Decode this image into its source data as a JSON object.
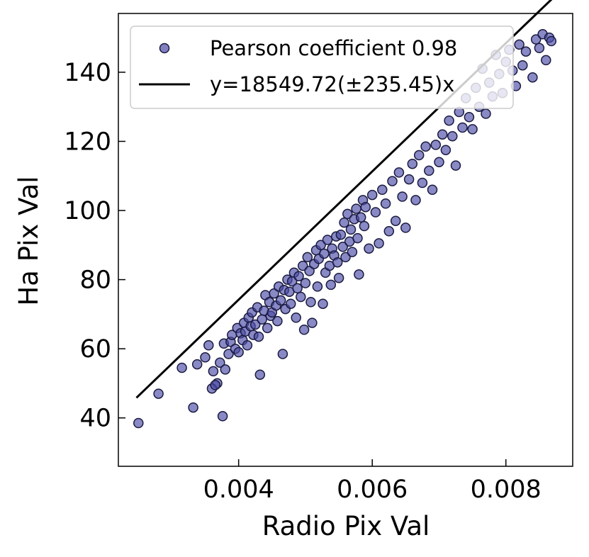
{
  "chart_data": {
    "type": "scatter",
    "xlabel": "Radio Pix Val",
    "ylabel": "Ha Pix Val",
    "xlim": [
      0.0022,
      0.009
    ],
    "ylim": [
      26,
      157
    ],
    "x_ticks": [
      0.004,
      0.006,
      0.008
    ],
    "x_tick_labels": [
      "0.004",
      "0.006",
      "0.008"
    ],
    "y_ticks": [
      40,
      60,
      80,
      100,
      120,
      140
    ],
    "y_tick_labels": [
      "40",
      "60",
      "80",
      "100",
      "120",
      "140"
    ],
    "grid": false,
    "legend_position": "top-left",
    "marker_color": "#4a4aa6",
    "marker_edge_color": "#1a1a40",
    "line_color": "#000000",
    "series": [
      {
        "name": "Pearson coefficient 0.98",
        "kind": "scatter",
        "points": [
          [
            0.0025,
            38.5
          ],
          [
            0.0028,
            47.0
          ],
          [
            0.00315,
            54.5
          ],
          [
            0.00332,
            43.0
          ],
          [
            0.00338,
            55.5
          ],
          [
            0.0035,
            57.5
          ],
          [
            0.00355,
            61.0
          ],
          [
            0.00362,
            53.5
          ],
          [
            0.00368,
            50.0
          ],
          [
            0.00372,
            56.0
          ],
          [
            0.0036,
            48.5
          ],
          [
            0.00365,
            49.5
          ],
          [
            0.00376,
            40.5
          ],
          [
            0.00378,
            61.5
          ],
          [
            0.0038,
            54.0
          ],
          [
            0.00385,
            58.5
          ],
          [
            0.00388,
            62.0
          ],
          [
            0.0039,
            64.0
          ],
          [
            0.00395,
            60.0
          ],
          [
            0.00398,
            66.0
          ],
          [
            0.004,
            59.0
          ],
          [
            0.00403,
            64.5
          ],
          [
            0.00406,
            62.5
          ],
          [
            0.00408,
            67.5
          ],
          [
            0.0041,
            65.0
          ],
          [
            0.00413,
            61.0
          ],
          [
            0.00415,
            69.0
          ],
          [
            0.00418,
            66.5
          ],
          [
            0.0042,
            70.5
          ],
          [
            0.00422,
            64.0
          ],
          [
            0.00425,
            67.0
          ],
          [
            0.00428,
            72.0
          ],
          [
            0.0043,
            63.5
          ],
          [
            0.00432,
            52.5
          ],
          [
            0.00435,
            68.5
          ],
          [
            0.00438,
            71.0
          ],
          [
            0.0044,
            75.5
          ],
          [
            0.00443,
            66.0
          ],
          [
            0.00446,
            73.5
          ],
          [
            0.00448,
            69.5
          ],
          [
            0.0045,
            70.5
          ],
          [
            0.00453,
            76.0
          ],
          [
            0.00456,
            72.5
          ],
          [
            0.00458,
            68.0
          ],
          [
            0.0046,
            78.0
          ],
          [
            0.00463,
            74.0
          ],
          [
            0.00466,
            58.5
          ],
          [
            0.00468,
            77.0
          ],
          [
            0.0047,
            71.5
          ],
          [
            0.00473,
            80.0
          ],
          [
            0.00476,
            76.5
          ],
          [
            0.00478,
            73.0
          ],
          [
            0.0048,
            79.5
          ],
          [
            0.00483,
            82.0
          ],
          [
            0.00486,
            69.0
          ],
          [
            0.00488,
            77.5
          ],
          [
            0.0049,
            81.0
          ],
          [
            0.00493,
            75.0
          ],
          [
            0.00496,
            84.0
          ],
          [
            0.00498,
            65.5
          ],
          [
            0.005,
            79.0
          ],
          [
            0.00503,
            86.5
          ],
          [
            0.00506,
            82.5
          ],
          [
            0.00508,
            73.5
          ],
          [
            0.0051,
            67.5
          ],
          [
            0.00513,
            84.5
          ],
          [
            0.00516,
            88.5
          ],
          [
            0.00518,
            78.0
          ],
          [
            0.0052,
            86.0
          ],
          [
            0.00523,
            90.0
          ],
          [
            0.00526,
            73.0
          ],
          [
            0.00528,
            87.5
          ],
          [
            0.0053,
            82.0
          ],
          [
            0.00533,
            91.5
          ],
          [
            0.00536,
            84.0
          ],
          [
            0.00538,
            78.5
          ],
          [
            0.0054,
            89.0
          ],
          [
            0.00543,
            87.0
          ],
          [
            0.00546,
            92.5
          ],
          [
            0.00548,
            85.0
          ],
          [
            0.0055,
            80.5
          ],
          [
            0.00553,
            93.0
          ],
          [
            0.00556,
            89.5
          ],
          [
            0.00558,
            96.5
          ],
          [
            0.0056,
            86.5
          ],
          [
            0.00563,
            99.0
          ],
          [
            0.00566,
            91.0
          ],
          [
            0.00568,
            94.5
          ],
          [
            0.0057,
            88.0
          ],
          [
            0.00573,
            97.5
          ],
          [
            0.00576,
            100.5
          ],
          [
            0.00578,
            92.0
          ],
          [
            0.0058,
            81.5
          ],
          [
            0.00583,
            98.0
          ],
          [
            0.00586,
            103.0
          ],
          [
            0.00588,
            95.5
          ],
          [
            0.0059,
            101.0
          ],
          [
            0.00595,
            89.0
          ],
          [
            0.006,
            104.5
          ],
          [
            0.00605,
            99.5
          ],
          [
            0.0061,
            90.5
          ],
          [
            0.00615,
            106.0
          ],
          [
            0.0062,
            102.0
          ],
          [
            0.00625,
            94.0
          ],
          [
            0.0063,
            108.5
          ],
          [
            0.00635,
            97.0
          ],
          [
            0.0064,
            111.0
          ],
          [
            0.00645,
            104.0
          ],
          [
            0.0065,
            95.0
          ],
          [
            0.00655,
            109.0
          ],
          [
            0.0066,
            113.5
          ],
          [
            0.00665,
            103.0
          ],
          [
            0.0067,
            116.0
          ],
          [
            0.00675,
            108.0
          ],
          [
            0.0068,
            118.5
          ],
          [
            0.00685,
            111.5
          ],
          [
            0.0069,
            106.0
          ],
          [
            0.00695,
            119.0
          ],
          [
            0.007,
            114.0
          ],
          [
            0.00705,
            122.0
          ],
          [
            0.0071,
            117.5
          ],
          [
            0.00715,
            126.0
          ],
          [
            0.0072,
            121.5
          ],
          [
            0.00725,
            113.0
          ],
          [
            0.0073,
            128.5
          ],
          [
            0.00735,
            124.0
          ],
          [
            0.0074,
            132.5
          ],
          [
            0.00745,
            127.0
          ],
          [
            0.0075,
            123.5
          ],
          [
            0.00755,
            135.5
          ],
          [
            0.0076,
            130.0
          ],
          [
            0.00765,
            141.0
          ],
          [
            0.0077,
            128.0
          ],
          [
            0.00775,
            137.0
          ],
          [
            0.0078,
            133.0
          ],
          [
            0.00785,
            145.0
          ],
          [
            0.0079,
            139.5
          ],
          [
            0.00795,
            134.0
          ],
          [
            0.008,
            143.0
          ],
          [
            0.00805,
            146.5
          ],
          [
            0.0081,
            140.5
          ],
          [
            0.00815,
            136.0
          ],
          [
            0.0082,
            148.0
          ],
          [
            0.00825,
            142.0
          ],
          [
            0.0083,
            146.0
          ],
          [
            0.0084,
            138.5
          ],
          [
            0.00845,
            149.5
          ],
          [
            0.0085,
            147.0
          ],
          [
            0.00855,
            151.0
          ],
          [
            0.0086,
            143.5
          ],
          [
            0.00865,
            150.0
          ],
          [
            0.00868,
            149.0
          ]
        ]
      },
      {
        "name": "y=18549.72(±235.45)x",
        "kind": "line",
        "slope": 18549.72,
        "x_range": [
          0.00247,
          0.0087
        ]
      }
    ]
  }
}
